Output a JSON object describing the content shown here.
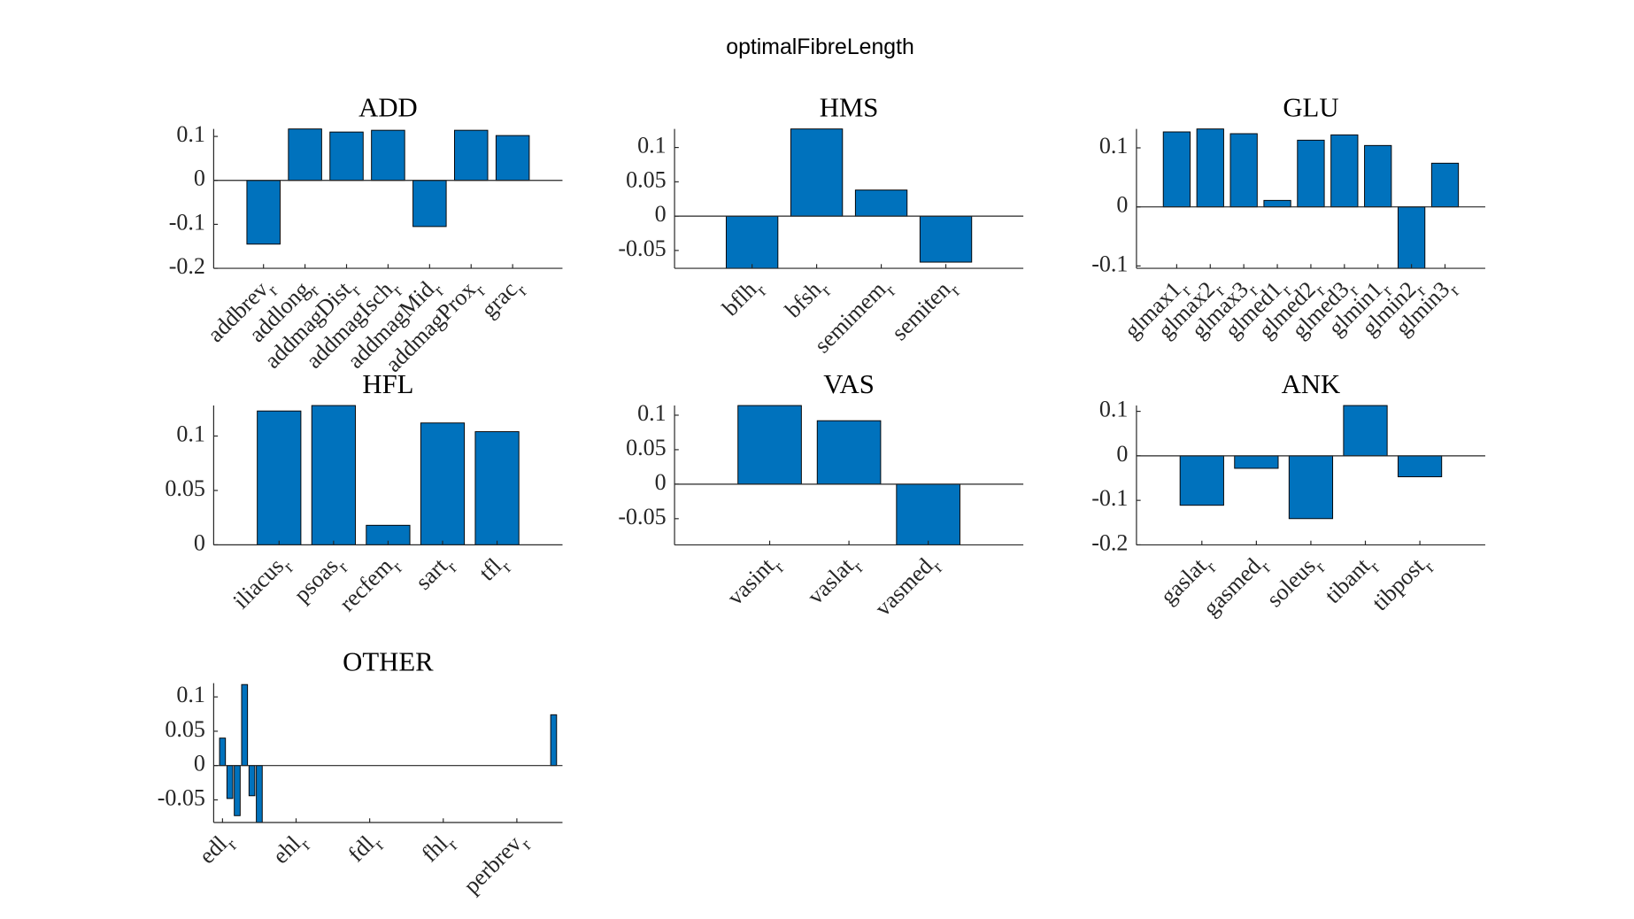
{
  "title": "optimalFibreLength",
  "chart_data": [
    {
      "type": "bar",
      "title": "ADD",
      "color": "#0072BD",
      "categories": [
        "addbrev_r",
        "addlong_r",
        "addmagDist_r",
        "addmagIsch_r",
        "addmagMid_r",
        "addmagProx_r",
        "grac_r"
      ],
      "values": [
        -0.145,
        0.117,
        0.11,
        0.114,
        -0.105,
        0.114,
        0.102
      ],
      "xlim": [
        -0.2,
        8.2
      ],
      "ylim": [
        -0.2,
        0.117
      ],
      "yticks": [
        -0.2,
        -0.1,
        0,
        0.1
      ]
    },
    {
      "type": "bar",
      "title": "HMS",
      "color": "#0072BD",
      "categories": [
        "bflh_r",
        "bfsh_r",
        "semimem_r",
        "semiten_r"
      ],
      "values": [
        -0.076,
        0.127,
        0.038,
        -0.067
      ],
      "xlim": [
        -0.2,
        5.2
      ],
      "ylim": [
        -0.076,
        0.127
      ],
      "yticks": [
        -0.05,
        0,
        0.05,
        0.1
      ]
    },
    {
      "type": "bar",
      "title": "GLU",
      "color": "#0072BD",
      "categories": [
        "glmax1_r",
        "glmax2_r",
        "glmax3_r",
        "glmed1_r",
        "glmed2_r",
        "glmed3_r",
        "glmin1_r",
        "glmin2_r",
        "glmin3_r"
      ],
      "values": [
        0.127,
        0.132,
        0.124,
        0.011,
        0.113,
        0.122,
        0.104,
        -0.104,
        0.074
      ],
      "xlim": [
        -0.2,
        10.2
      ],
      "ylim": [
        -0.104,
        0.132
      ],
      "yticks": [
        -0.1,
        0,
        0.1
      ]
    },
    {
      "type": "bar",
      "title": "HFL",
      "color": "#0072BD",
      "categories": [
        "iliacus_r",
        "psoas_r",
        "recfem_r",
        "sart_r",
        "tfl_r"
      ],
      "values": [
        0.123,
        0.128,
        0.018,
        0.112,
        0.104
      ],
      "xlim": [
        -0.2,
        6.2
      ],
      "ylim": [
        0,
        0.128
      ],
      "yticks": [
        0,
        0.05,
        0.1
      ]
    },
    {
      "type": "bar",
      "title": "VAS",
      "color": "#0072BD",
      "categories": [
        "vasint_r",
        "vaslat_r",
        "vasmed_r"
      ],
      "values": [
        0.114,
        0.092,
        -0.088
      ],
      "xlim": [
        -0.2,
        4.2
      ],
      "ylim": [
        -0.088,
        0.114
      ],
      "yticks": [
        -0.05,
        0,
        0.05,
        0.1
      ]
    },
    {
      "type": "bar",
      "title": "ANK",
      "color": "#0072BD",
      "categories": [
        "gaslat_r",
        "gasmed_r",
        "soleus_r",
        "tibant_r",
        "tibpost_r"
      ],
      "values": [
        -0.111,
        -0.028,
        -0.141,
        0.113,
        -0.047
      ],
      "xlim": [
        -0.2,
        6.2
      ],
      "ylim": [
        -0.2,
        0.113
      ],
      "yticks": [
        -0.2,
        -0.1,
        0,
        0.1
      ]
    },
    {
      "type": "bar",
      "title": "OTHER",
      "color": "#0072BD",
      "categories": [
        "edl_r",
        null,
        null,
        null,
        null,
        null,
        null,
        null,
        null,
        null,
        "ehl_r",
        null,
        null,
        null,
        null,
        null,
        null,
        null,
        null,
        null,
        "fdl_r",
        null,
        null,
        null,
        null,
        null,
        null,
        null,
        null,
        null,
        "fhl_r",
        null,
        null,
        null,
        null,
        null,
        null,
        null,
        null,
        null,
        "perbrev_r",
        null,
        null,
        null,
        null,
        null
      ],
      "values": [
        0.04,
        -0.048,
        -0.073,
        0.118,
        -0.044,
        -0.083,
        0,
        0,
        0,
        0,
        0,
        0,
        0,
        0,
        0,
        0,
        0,
        0,
        0,
        0,
        0,
        0,
        0,
        0,
        0,
        0,
        0,
        0,
        0,
        0,
        0,
        0,
        0,
        0,
        0,
        0,
        0,
        0,
        0,
        0,
        0,
        0,
        0,
        0,
        0,
        0.074
      ],
      "xlim": [
        -0.2,
        47.2
      ],
      "ylim": [
        -0.083,
        0.12
      ],
      "yticks": [
        -0.05,
        0,
        0.05,
        0.1
      ]
    }
  ]
}
